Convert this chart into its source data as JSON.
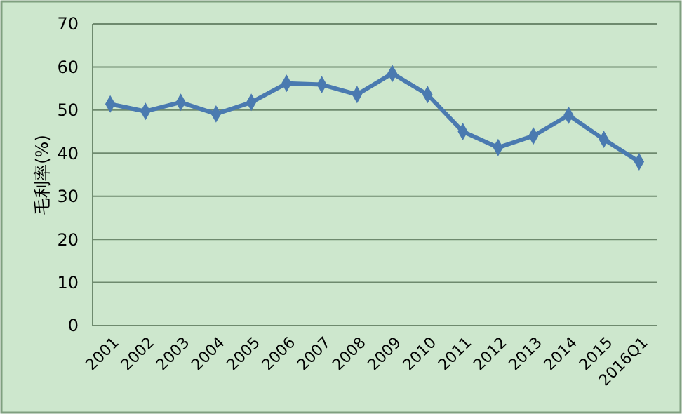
{
  "chart_data": {
    "type": "line",
    "ylabel": "毛利率(%)",
    "categories": [
      "2001",
      "2002",
      "2003",
      "2004",
      "2005",
      "2006",
      "2007",
      "2008",
      "2009",
      "2010",
      "2011",
      "2012",
      "2013",
      "2014",
      "2015",
      "2016Q1"
    ],
    "series": [
      {
        "color": "#4a7ab0",
        "values": [
          51.4,
          49.7,
          51.8,
          49.1,
          51.8,
          56.2,
          55.9,
          53.6,
          58.5,
          53.6,
          45.0,
          41.3,
          44.0,
          48.8,
          43.2,
          38.0
        ]
      }
    ],
    "ylim": [
      0,
      70
    ],
    "yticks": [
      0,
      10,
      20,
      30,
      40,
      50,
      60,
      70
    ],
    "grid": "y",
    "marker": "diamond",
    "line_style": "solid"
  }
}
